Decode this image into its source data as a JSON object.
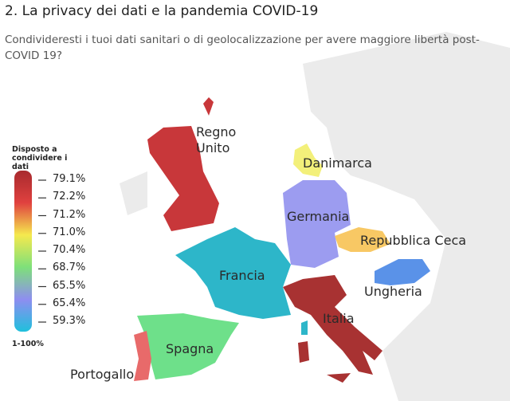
{
  "header": {
    "title": "2. La privacy dei dati e la pandemia COVID-19",
    "subtitle": "Condivideresti i tuoi dati sanitari o di geolocalizzazione per avere maggiore libertà post-COVID 19?"
  },
  "legend": {
    "title": "Disposto a condividere i dati",
    "colors": [
      "#a82a2e",
      "#e0413f",
      "#f5e94e",
      "#7ee07a",
      "#8e8ef0",
      "#1fc0dc"
    ],
    "ticks": [
      {
        "value": 79.1,
        "label": "79.1%"
      },
      {
        "value": 72.2,
        "label": "72.2%"
      },
      {
        "value": 71.2,
        "label": "71.2%"
      },
      {
        "value": 71.0,
        "label": "71.0%"
      },
      {
        "value": 70.4,
        "label": "70.4%"
      },
      {
        "value": 68.7,
        "label": "68.7%"
      },
      {
        "value": 65.5,
        "label": "65.5%"
      },
      {
        "value": 65.4,
        "label": "65.4%"
      },
      {
        "value": 59.3,
        "label": "59.3%"
      }
    ],
    "footer": "1-100%"
  },
  "regions": [
    {
      "name": "Regno Unito",
      "color": "#c8373a"
    },
    {
      "name": "Danimarca",
      "color": "#f3f07a"
    },
    {
      "name": "Germania",
      "color": "#9c9cf0"
    },
    {
      "name": "Repubblica Ceca",
      "color": "#f8c864"
    },
    {
      "name": "Francia",
      "color": "#2db6c9"
    },
    {
      "name": "Ungheria",
      "color": "#5a92e8"
    },
    {
      "name": "Italia",
      "color": "#a83232"
    },
    {
      "name": "Spagna",
      "color": "#6ee08a"
    },
    {
      "name": "Portogallo",
      "color": "#e86a6a"
    }
  ]
}
